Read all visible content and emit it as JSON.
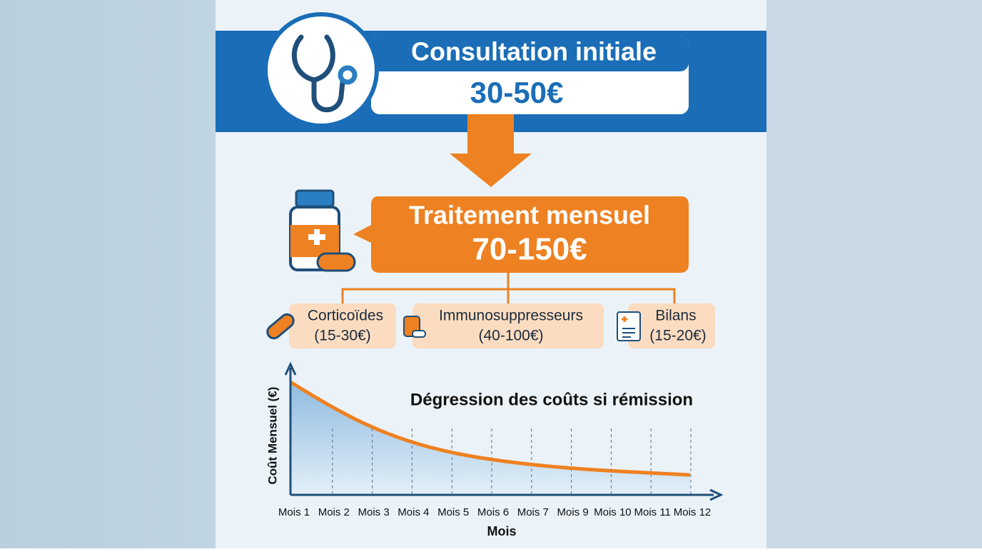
{
  "header": {
    "title": "Consultation initiale",
    "price": "30-50€"
  },
  "treatment": {
    "title": "Traitement mensuel",
    "price": "70-150€"
  },
  "items": [
    {
      "name": "Corticoïdes",
      "price": "(15-30€)"
    },
    {
      "name": "Immunosuppresseurs",
      "price": "(40-100€)"
    },
    {
      "name": "Bilans",
      "price": "(15-20€)"
    }
  ],
  "chart": {
    "title": "Dégression des coûts si rémission",
    "x_label": "Mois",
    "y_label": "Coût Mensuel (€)",
    "categories": [
      "Mois 1",
      "Mois 2",
      "Mois 3",
      "Mois 4",
      "Mois 5",
      "Mois 6",
      "Mois 7",
      "Mois 9",
      "Mois 10",
      "Mois 11",
      "Mois 12"
    ]
  }
}
